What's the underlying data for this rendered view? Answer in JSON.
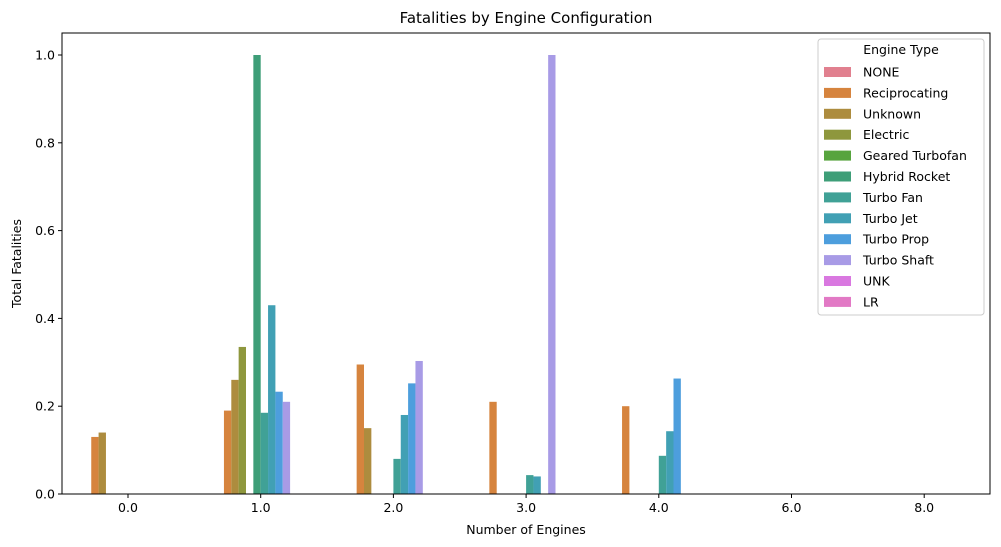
{
  "chart_data": {
    "type": "bar",
    "title": "Fatalities by Engine Configuration",
    "xlabel": "Number of Engines",
    "ylabel": "Total Fatalities",
    "ylim": [
      0,
      1.05
    ],
    "y_ticks": [
      "0.0",
      "0.2",
      "0.4",
      "0.6",
      "0.8",
      "1.0"
    ],
    "categories": [
      "0.0",
      "1.0",
      "2.0",
      "3.0",
      "4.0",
      "6.0",
      "8.0"
    ],
    "legend_title": "Engine Type",
    "legend_position": "top-right",
    "grid": false,
    "series": [
      {
        "name": "NONE",
        "color": "#e1808f",
        "values": [
          0,
          0,
          0,
          0,
          0,
          0,
          0
        ]
      },
      {
        "name": "Reciprocating",
        "color": "#d6843e",
        "values": [
          0.13,
          0.19,
          0.295,
          0.21,
          0.2,
          0,
          0
        ]
      },
      {
        "name": "Unknown",
        "color": "#ad8c3e",
        "values": [
          0.14,
          0.26,
          0.15,
          0,
          0,
          0,
          0
        ]
      },
      {
        "name": "Electric",
        "color": "#8e973d",
        "values": [
          0,
          0.335,
          0,
          0,
          0,
          0,
          0
        ]
      },
      {
        "name": "Geared Turbofan",
        "color": "#57a43e",
        "values": [
          0,
          0,
          0,
          0,
          0,
          0,
          0
        ]
      },
      {
        "name": "Hybrid Rocket",
        "color": "#3e9e78",
        "values": [
          0,
          1.0,
          0,
          0,
          0,
          0,
          0
        ]
      },
      {
        "name": "Turbo Fan",
        "color": "#40a196",
        "values": [
          0,
          0.185,
          0.08,
          0.043,
          0.087,
          0,
          0
        ]
      },
      {
        "name": "Turbo Jet",
        "color": "#41a0b4",
        "values": [
          0,
          0.43,
          0.18,
          0.04,
          0.143,
          0,
          0
        ]
      },
      {
        "name": "Turbo Prop",
        "color": "#4d9edd",
        "values": [
          0,
          0.233,
          0.252,
          0,
          0.263,
          0,
          0
        ]
      },
      {
        "name": "Turbo Shaft",
        "color": "#a89be6",
        "values": [
          0,
          0.21,
          0.303,
          1.0,
          0,
          0,
          0
        ]
      },
      {
        "name": "UNK",
        "color": "#d978e0",
        "values": [
          0,
          0,
          0,
          0,
          0,
          0,
          0
        ]
      },
      {
        "name": "LR",
        "color": "#e279c5",
        "values": [
          0,
          0,
          0,
          0,
          0,
          0,
          0
        ]
      }
    ]
  }
}
